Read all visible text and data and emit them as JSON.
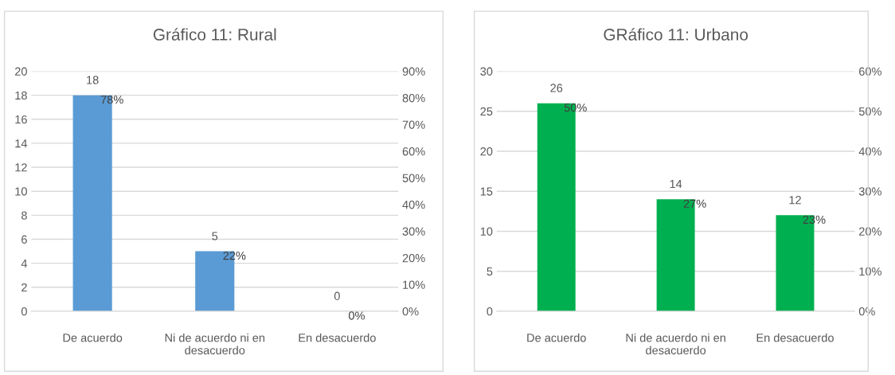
{
  "chart_data": [
    {
      "type": "bar",
      "title": "Gráfico 11: Rural",
      "categories": [
        "De acuerdo",
        "Ni de acuerdo ni en\ndesacuerdo",
        "En desacuerdo"
      ],
      "ylim": [
        0,
        20
      ],
      "yticks": [
        0,
        2,
        4,
        6,
        8,
        10,
        12,
        14,
        16,
        18,
        20
      ],
      "y2lim": [
        0,
        90
      ],
      "y2ticks": [
        {
          "value": 0,
          "label": "0%"
        },
        {
          "value": 10,
          "label": "10%"
        },
        {
          "value": 20,
          "label": "20%"
        },
        {
          "value": 30,
          "label": "30%"
        },
        {
          "value": 40,
          "label": "40%"
        },
        {
          "value": 50,
          "label": "50%"
        },
        {
          "value": 60,
          "label": "60%"
        },
        {
          "value": 70,
          "label": "70%"
        },
        {
          "value": 80,
          "label": "80%"
        },
        {
          "value": 90,
          "label": "90%"
        }
      ],
      "grid": "y",
      "data_labels": true,
      "series": [
        {
          "color": "#5b9bd5",
          "values": [
            18,
            5,
            0
          ]
        }
      ],
      "annotations": [
        {
          "text": "78%",
          "x": "De acuerdo",
          "y": 18
        },
        {
          "text": "22%",
          "x": "Ni de acuerdo ni en\ndesacuerdo",
          "y": 5
        },
        {
          "text": "0%",
          "x": "En desacuerdo",
          "y": 0
        }
      ]
    },
    {
      "type": "bar",
      "title": "GRáfico 11: Urbano",
      "categories": [
        "De acuerdo",
        "Ni de acuerdo ni en\ndesacuerdo",
        "En desacuerdo"
      ],
      "ylim": [
        0,
        30
      ],
      "yticks": [
        0,
        5,
        10,
        15,
        20,
        25,
        30
      ],
      "y2lim": [
        0,
        60
      ],
      "y2ticks": [
        {
          "value": 0,
          "label": "0%"
        },
        {
          "value": 10,
          "label": "10%"
        },
        {
          "value": 20,
          "label": "20%"
        },
        {
          "value": 30,
          "label": "30%"
        },
        {
          "value": 40,
          "label": "40%"
        },
        {
          "value": 50,
          "label": "50%"
        },
        {
          "value": 60,
          "label": "60%"
        }
      ],
      "grid": "y",
      "data_labels": true,
      "series": [
        {
          "color": "#00b050",
          "values": [
            26,
            14,
            12
          ]
        }
      ],
      "annotations": [
        {
          "text": "50%",
          "x": "De acuerdo",
          "y": 26
        },
        {
          "text": "27%",
          "x": "Ni de acuerdo ni en\ndesacuerdo",
          "y": 14
        },
        {
          "text": "23%",
          "x": "En desacuerdo",
          "y": 12
        }
      ]
    }
  ]
}
